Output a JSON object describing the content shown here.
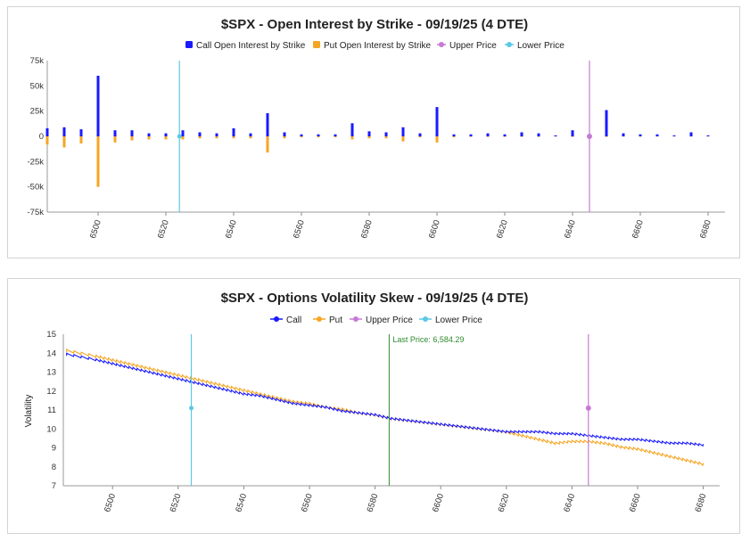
{
  "charts": [
    {
      "title": "$SPX - Open Interest by Strike - 09/19/25 (4 DTE)",
      "legend": [
        "Call Open Interest by Strike",
        "Put Open Interest by Strike",
        "Upper Price",
        "Lower Price"
      ],
      "y_ticks": [
        "75k",
        "50k",
        "25k",
        "0",
        "-25k",
        "-50k",
        "-75k"
      ],
      "x_ticks": [
        "6500",
        "6520",
        "6540",
        "6560",
        "6580",
        "6600",
        "6620",
        "6640",
        "6660",
        "6680"
      ]
    },
    {
      "title": "$SPX - Options Volatility Skew - 09/19/25 (4 DTE)",
      "legend": [
        "Call",
        "Put",
        "Upper Price",
        "Lower Price"
      ],
      "y_label": "Volatility",
      "y_ticks": [
        "15",
        "14",
        "13",
        "12",
        "11",
        "10",
        "9",
        "8",
        "7"
      ],
      "x_ticks": [
        "6500",
        "6520",
        "6540",
        "6560",
        "6580",
        "6600",
        "6620",
        "6640",
        "6660",
        "6680"
      ],
      "last_price_label": "Last Price: 6,584.29"
    }
  ],
  "chart_data": [
    {
      "type": "bar",
      "title": "$SPX - Open Interest by Strike - 09/19/25 (4 DTE)",
      "ylim": [
        -75000,
        75000
      ],
      "xlim": [
        6485,
        6685
      ],
      "legend_position": "top",
      "colors": {
        "call": "#1a1aff",
        "put": "#f5a623",
        "upper": "#c879d6",
        "lower": "#5bc8e6"
      },
      "upper_price": 6645,
      "lower_price": 6524,
      "strikes": [
        6485,
        6490,
        6495,
        6500,
        6505,
        6510,
        6515,
        6520,
        6525,
        6530,
        6535,
        6540,
        6545,
        6550,
        6555,
        6560,
        6565,
        6570,
        6575,
        6580,
        6585,
        6590,
        6595,
        6600,
        6605,
        6610,
        6615,
        6620,
        6625,
        6630,
        6635,
        6640,
        6645,
        6650,
        6655,
        6660,
        6665,
        6670,
        6675,
        6680
      ],
      "series": [
        {
          "name": "Call Open Interest by Strike",
          "values": [
            8000,
            9000,
            7000,
            60000,
            6000,
            6000,
            3000,
            3000,
            6000,
            4000,
            3000,
            8000,
            3000,
            23000,
            4000,
            2000,
            2000,
            2000,
            13000,
            5000,
            4000,
            9000,
            3000,
            29000,
            2000,
            2000,
            3000,
            2000,
            4000,
            3000,
            1000,
            6000,
            1000,
            26000,
            3000,
            2000,
            2000,
            1000,
            4000,
            1000
          ]
        },
        {
          "name": "Put Open Interest by Strike",
          "values": [
            -8000,
            -11000,
            -7000,
            -50000,
            -6000,
            -4000,
            -3000,
            -3000,
            -3000,
            -2000,
            -2000,
            -2000,
            -2000,
            -16000,
            -2000,
            -1000,
            -1000,
            -1000,
            -3000,
            -2000,
            -2000,
            -5000,
            -1000,
            -6000,
            -1000,
            -500,
            -500,
            -500,
            -500,
            -500,
            -200,
            -500,
            0,
            -500,
            -200,
            -200,
            -200,
            -100,
            -200,
            -100
          ]
        }
      ]
    },
    {
      "type": "line",
      "title": "$SPX - Options Volatility Skew - 09/19/25 (4 DTE)",
      "ylabel": "Volatility",
      "ylim": [
        7,
        15
      ],
      "xlim": [
        6485,
        6685
      ],
      "legend_position": "top",
      "upper_price": 6645,
      "upper_price_vol": 11.1,
      "lower_price": 6524,
      "lower_price_vol": 11.1,
      "last_price": 6584.29,
      "x": [
        6486,
        6495,
        6500,
        6505,
        6510,
        6515,
        6520,
        6525,
        6530,
        6535,
        6540,
        6545,
        6550,
        6555,
        6560,
        6565,
        6570,
        6575,
        6580,
        6585,
        6590,
        6595,
        6600,
        6605,
        6610,
        6615,
        6620,
        6625,
        6630,
        6635,
        6640,
        6645,
        6650,
        6655,
        6660,
        6665,
        6670,
        6675,
        6680
      ],
      "series": [
        {
          "name": "Call",
          "values": [
            14.0,
            13.7,
            13.5,
            13.3,
            13.1,
            12.9,
            12.7,
            12.5,
            12.3,
            12.1,
            11.9,
            11.8,
            11.6,
            11.4,
            11.3,
            11.2,
            11.0,
            10.9,
            10.8,
            10.6,
            10.5,
            10.4,
            10.3,
            10.2,
            10.1,
            10.0,
            9.9,
            9.9,
            9.9,
            9.8,
            9.8,
            9.7,
            9.6,
            9.5,
            9.5,
            9.4,
            9.3,
            9.3,
            9.2
          ]
        },
        {
          "name": "Put",
          "values": [
            14.2,
            13.9,
            13.7,
            13.5,
            13.3,
            13.1,
            12.9,
            12.7,
            12.5,
            12.3,
            12.1,
            11.9,
            11.7,
            11.5,
            11.4,
            11.2,
            11.1,
            10.9,
            10.8,
            10.6,
            10.5,
            10.4,
            10.3,
            10.2,
            10.1,
            10.0,
            9.9,
            9.7,
            9.5,
            9.3,
            9.4,
            9.4,
            9.3,
            9.1,
            9.0,
            8.8,
            8.6,
            8.4,
            8.2
          ]
        }
      ]
    }
  ]
}
